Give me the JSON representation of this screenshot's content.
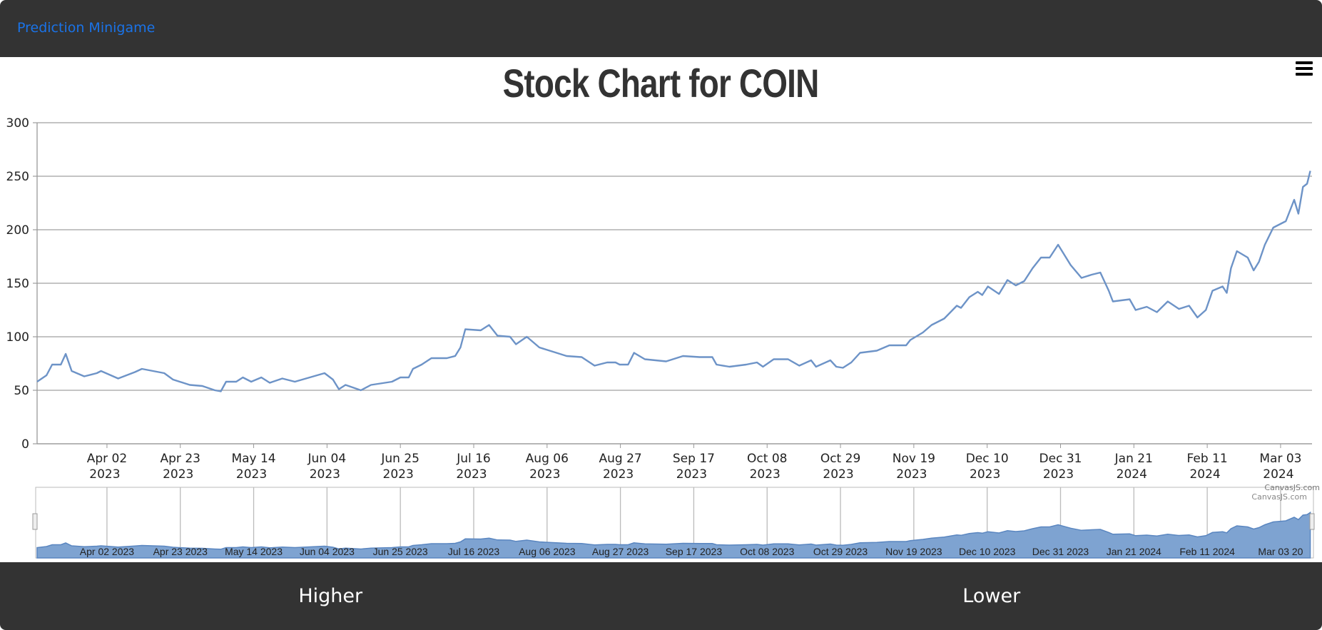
{
  "header": {
    "brand": "Prediction Minigame"
  },
  "menu_icon": "hamburger-icon",
  "credit": "CanvasJS.com",
  "footer": {
    "higher_label": "Higher",
    "lower_label": "Lower"
  },
  "colors": {
    "line": "#6d93c7",
    "area": "#7ea3d1",
    "bar": "#333333",
    "brand": "#1a73e8"
  },
  "chart_data": {
    "type": "line",
    "title": "Stock Chart for COIN",
    "start_date": "2023-03-13",
    "x_unit": "days since start_date",
    "xlim": [
      0,
      365
    ],
    "ylim": [
      0,
      300
    ],
    "yticks": [
      0,
      50,
      100,
      150,
      200,
      250,
      300
    ],
    "xticks": [
      {
        "day": 20,
        "label": "Apr 02",
        "year": "2023"
      },
      {
        "day": 41,
        "label": "Apr 23",
        "year": "2023"
      },
      {
        "day": 62,
        "label": "May 14",
        "year": "2023"
      },
      {
        "day": 83,
        "label": "Jun 04",
        "year": "2023"
      },
      {
        "day": 104,
        "label": "Jun 25",
        "year": "2023"
      },
      {
        "day": 125,
        "label": "Jul 16",
        "year": "2023"
      },
      {
        "day": 146,
        "label": "Aug 06",
        "year": "2023"
      },
      {
        "day": 167,
        "label": "Aug 27",
        "year": "2023"
      },
      {
        "day": 188,
        "label": "Sep 17",
        "year": "2023"
      },
      {
        "day": 209,
        "label": "Oct 08",
        "year": "2023"
      },
      {
        "day": 230,
        "label": "Oct 29",
        "year": "2023"
      },
      {
        "day": 251,
        "label": "Nov 19",
        "year": "2023"
      },
      {
        "day": 272,
        "label": "Dec 10",
        "year": "2023"
      },
      {
        "day": 293,
        "label": "Dec 31",
        "year": "2023"
      },
      {
        "day": 314,
        "label": "Jan 21",
        "year": "2024"
      },
      {
        "day": 335,
        "label": "Feb 11",
        "year": "2024"
      },
      {
        "day": 356,
        "label": "Mar 03",
        "year": "2024"
      }
    ],
    "navigator_labels": [
      "Apr 02 2023",
      "Apr 23 2023",
      "May 14 2023",
      "Jun 04 2023",
      "Jun 25 2023",
      "Jul 16 2023",
      "Aug 06 2023",
      "Aug 27 2023",
      "Sep 17 2023",
      "Oct 08 2023",
      "Oct 29 2023",
      "Nov 19 2023",
      "Dec 10 2023",
      "Dec 31 2023",
      "Jan 21 2024",
      "Feb 11 2024",
      "Mar 03 20"
    ],
    "points": [
      [
        0,
        58
      ],
      [
        2.7,
        64
      ],
      [
        4.3,
        74
      ],
      [
        6.8,
        74
      ],
      [
        8.2,
        84
      ],
      [
        9.9,
        68
      ],
      [
        13.5,
        63
      ],
      [
        17.1,
        66
      ],
      [
        18.3,
        68
      ],
      [
        23.2,
        61
      ],
      [
        28,
        67
      ],
      [
        30,
        70
      ],
      [
        31.6,
        69
      ],
      [
        36.4,
        66
      ],
      [
        38.9,
        60
      ],
      [
        43.7,
        55
      ],
      [
        47.3,
        54
      ],
      [
        50.9,
        50
      ],
      [
        52.6,
        49
      ],
      [
        54.1,
        58
      ],
      [
        57,
        58
      ],
      [
        58.9,
        62
      ],
      [
        61.3,
        58
      ],
      [
        64.2,
        62
      ],
      [
        66.6,
        57
      ],
      [
        70.2,
        61
      ],
      [
        73.8,
        58
      ],
      [
        82.3,
        66
      ],
      [
        84.7,
        60
      ],
      [
        86.4,
        51
      ],
      [
        88.3,
        55
      ],
      [
        92.7,
        50
      ],
      [
        95.6,
        55
      ],
      [
        101.6,
        58
      ],
      [
        104,
        62
      ],
      [
        106.4,
        62
      ],
      [
        107.6,
        70
      ],
      [
        110.1,
        74
      ],
      [
        112.9,
        80
      ],
      [
        117.3,
        80
      ],
      [
        119.7,
        82
      ],
      [
        121.2,
        90
      ],
      [
        122.6,
        107
      ],
      [
        127,
        106
      ],
      [
        129.4,
        111
      ],
      [
        131.8,
        101
      ],
      [
        135.4,
        100
      ],
      [
        137.1,
        93
      ],
      [
        140.2,
        100
      ],
      [
        143.8,
        90
      ],
      [
        148.7,
        85
      ],
      [
        151.6,
        82
      ],
      [
        155.9,
        81
      ],
      [
        159.6,
        73
      ],
      [
        163.2,
        76
      ],
      [
        165.6,
        76
      ],
      [
        166.8,
        74
      ],
      [
        169.2,
        74
      ],
      [
        170.9,
        85
      ],
      [
        174,
        79
      ],
      [
        180.1,
        77
      ],
      [
        184.9,
        82
      ],
      [
        189.7,
        81
      ],
      [
        193.3,
        81
      ],
      [
        194.5,
        74
      ],
      [
        198.2,
        72
      ],
      [
        203,
        74
      ],
      [
        206.1,
        76
      ],
      [
        207.8,
        72
      ],
      [
        210.9,
        79
      ],
      [
        215,
        79
      ],
      [
        218.2,
        73
      ],
      [
        221.6,
        78
      ],
      [
        223,
        72
      ],
      [
        227.1,
        78
      ],
      [
        228.8,
        72
      ],
      [
        230.7,
        71
      ],
      [
        233.1,
        76
      ],
      [
        235.6,
        85
      ],
      [
        240.4,
        87
      ],
      [
        244,
        92
      ],
      [
        248.8,
        92
      ],
      [
        250,
        97
      ],
      [
        253.6,
        104
      ],
      [
        256.1,
        111
      ],
      [
        259.7,
        117
      ],
      [
        263.3,
        129
      ],
      [
        264.5,
        127
      ],
      [
        266.9,
        137
      ],
      [
        269.3,
        142
      ],
      [
        270.6,
        139
      ],
      [
        272.2,
        147
      ],
      [
        275.4,
        140
      ],
      [
        277.8,
        153
      ],
      [
        280.2,
        148
      ],
      [
        282.6,
        152
      ],
      [
        285,
        164
      ],
      [
        287.4,
        174
      ],
      [
        289.9,
        174
      ],
      [
        292.3,
        186
      ],
      [
        295.9,
        167
      ],
      [
        299,
        155
      ],
      [
        301.9,
        158
      ],
      [
        304.4,
        160
      ],
      [
        306.8,
        143
      ],
      [
        308,
        133
      ],
      [
        312.8,
        135
      ],
      [
        314.5,
        125
      ],
      [
        317.7,
        128
      ],
      [
        320.6,
        123
      ],
      [
        323.7,
        133
      ],
      [
        326.9,
        126
      ],
      [
        329.8,
        129
      ],
      [
        332.2,
        118
      ],
      [
        334.6,
        125
      ],
      [
        336.5,
        143
      ],
      [
        339.4,
        147
      ],
      [
        340.6,
        141
      ],
      [
        341.8,
        164
      ],
      [
        343.5,
        180
      ],
      [
        346.6,
        174
      ],
      [
        348.3,
        162
      ],
      [
        349.8,
        170
      ],
      [
        351.5,
        186
      ],
      [
        353.9,
        202
      ],
      [
        357.5,
        208
      ],
      [
        359.9,
        228
      ],
      [
        361.1,
        215
      ],
      [
        362.4,
        240
      ],
      [
        363.6,
        243
      ],
      [
        364.5,
        255
      ]
    ]
  }
}
